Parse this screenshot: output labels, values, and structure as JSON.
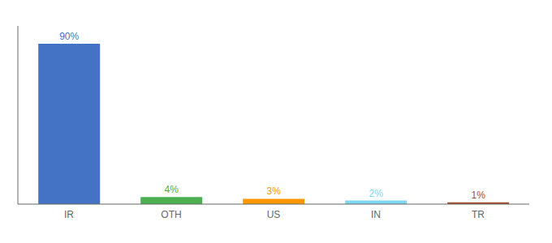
{
  "chart_data": {
    "type": "bar",
    "categories": [
      "IR",
      "OTH",
      "US",
      "IN",
      "TR"
    ],
    "values": [
      90,
      4,
      3,
      2,
      1
    ],
    "value_labels": [
      "90%",
      "4%",
      "3%",
      "2%",
      "1%"
    ],
    "colors": [
      "#4472c4",
      "#4caf50",
      "#ff9800",
      "#80d8f0",
      "#a0522d"
    ],
    "ylim": [
      0,
      100
    ],
    "data_labels": true,
    "tick_labels": "x"
  }
}
